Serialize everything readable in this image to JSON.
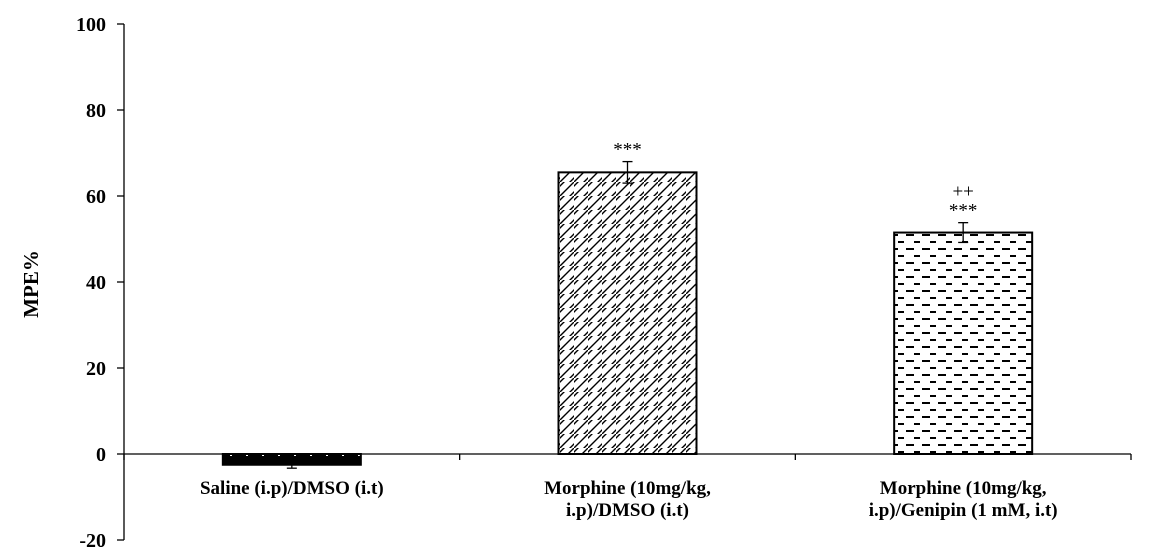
{
  "chart_data": {
    "type": "bar",
    "title": "",
    "xlabel": "",
    "ylabel": "MPE%",
    "ylim": [
      -20,
      100
    ],
    "yticks": [
      -20,
      0,
      20,
      40,
      60,
      80,
      100
    ],
    "ytick_labels": [
      "-20",
      "0",
      "20",
      "40",
      "60",
      "80",
      "100"
    ],
    "grid": false,
    "categories": [
      [
        "Saline (i.p)/DMSO (i.t)"
      ],
      [
        "Morphine (10mg/kg,",
        "i.p)/DMSO (i.t)"
      ],
      [
        "Morphine (10mg/kg,",
        "i.p)/Genipin (1 mM, i.t)"
      ]
    ],
    "values": [
      -2.5,
      65.5,
      51.5
    ],
    "errors": [
      0.8,
      2.5,
      2.3
    ],
    "annotations": [
      [],
      [
        "***"
      ],
      [
        "++",
        "***"
      ]
    ],
    "patterns": [
      "dots-on-black",
      "diagonal-hatch",
      "horizontal-dashes"
    ],
    "colors": {
      "bar_fill": "#ffffff",
      "ink": "#000000"
    }
  }
}
